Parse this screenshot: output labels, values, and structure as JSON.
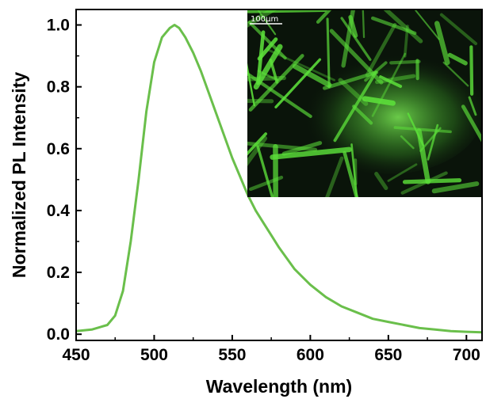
{
  "chart_data": {
    "type": "line",
    "title": "",
    "xlabel": "Wavelength (nm)",
    "ylabel": "Normalized PL Intensity",
    "xlim": [
      450,
      710
    ],
    "ylim": [
      -0.02,
      1.05
    ],
    "xticks": [
      450,
      500,
      550,
      600,
      650,
      700
    ],
    "yticks": [
      0.0,
      0.2,
      0.4,
      0.6,
      0.8,
      1.0
    ],
    "xtick_labels": [
      "450",
      "500",
      "550",
      "600",
      "650",
      "700"
    ],
    "ytick_labels": [
      "0.0",
      "0.2",
      "0.4",
      "0.6",
      "0.8",
      "1.0"
    ],
    "grid": false,
    "legend": false,
    "series": [
      {
        "color": "#6abf4b",
        "x": [
          450,
          460,
          470,
          475,
          480,
          485,
          490,
          495,
          500,
          505,
          510,
          513,
          516,
          520,
          525,
          530,
          535,
          540,
          545,
          550,
          555,
          560,
          565,
          570,
          575,
          580,
          590,
          600,
          610,
          620,
          630,
          640,
          650,
          660,
          670,
          680,
          690,
          700,
          710
        ],
        "y": [
          0.01,
          0.015,
          0.03,
          0.06,
          0.14,
          0.3,
          0.5,
          0.72,
          0.88,
          0.96,
          0.99,
          1.0,
          0.99,
          0.96,
          0.91,
          0.85,
          0.78,
          0.71,
          0.64,
          0.57,
          0.51,
          0.45,
          0.4,
          0.36,
          0.32,
          0.28,
          0.21,
          0.16,
          0.12,
          0.09,
          0.07,
          0.05,
          0.04,
          0.03,
          0.02,
          0.015,
          0.01,
          0.008,
          0.006
        ]
      }
    ]
  },
  "inset": {
    "name": "fluorescence micrograph of green-emitting microcrystals",
    "scale_bar_label": "100μm",
    "background_color": "#0a140a",
    "crystal_color": "#5ce03a"
  }
}
